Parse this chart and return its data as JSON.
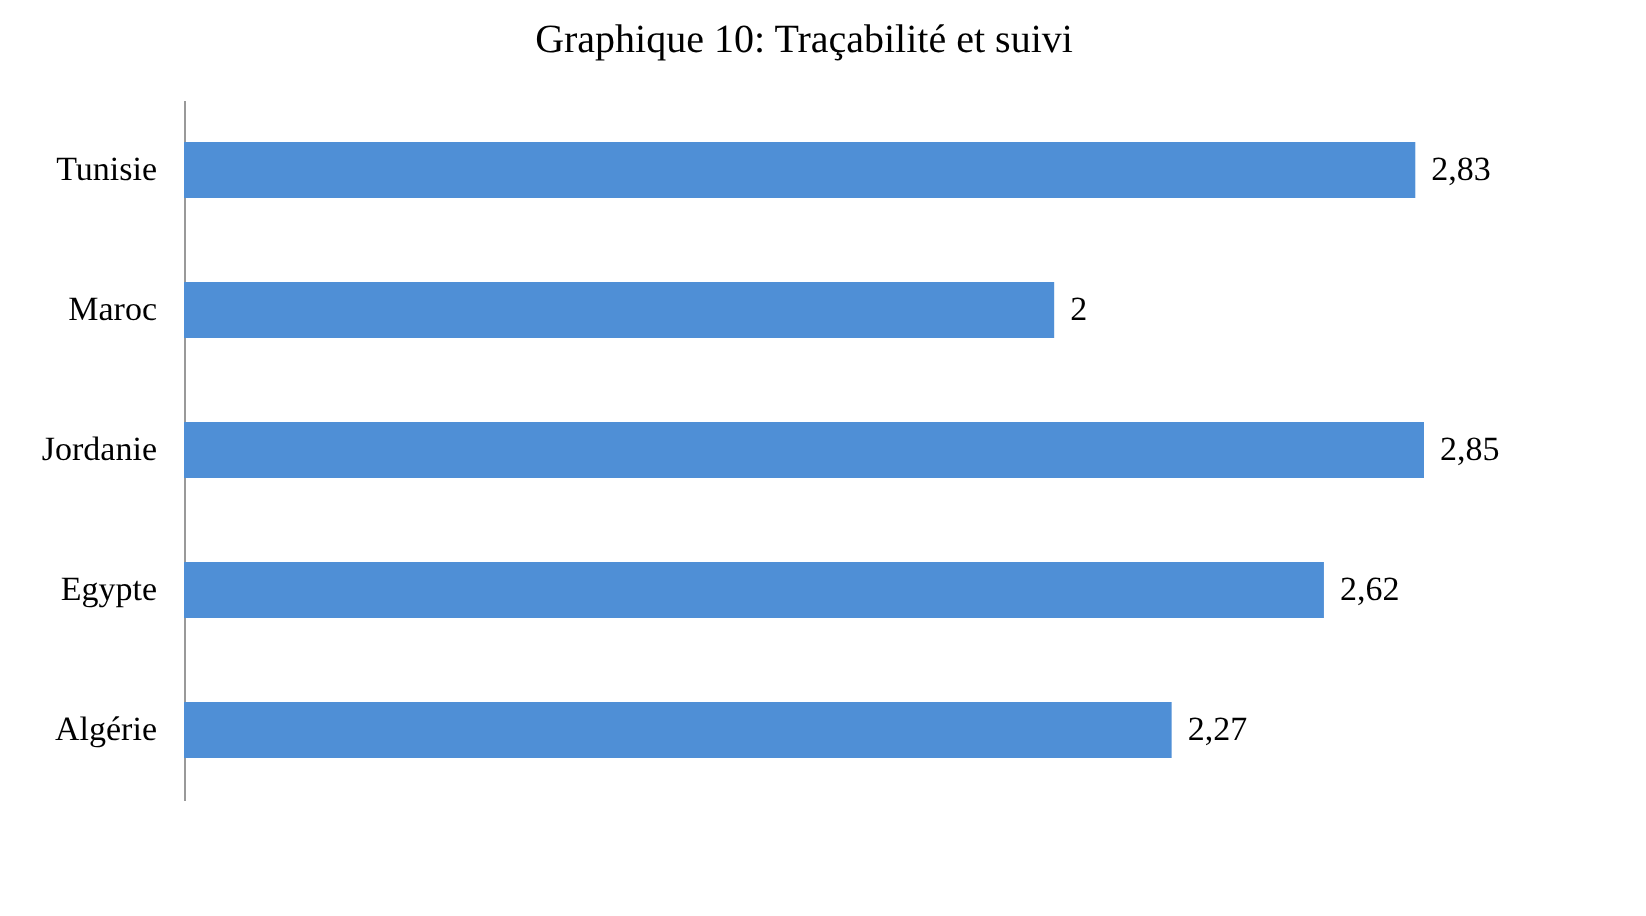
{
  "chart_data": {
    "type": "bar",
    "orientation": "horizontal",
    "title": "Graphique 10: Traçabilité et suivi",
    "categories": [
      "Tunisie",
      "Maroc",
      "Jordanie",
      "Egypte",
      "Algérie"
    ],
    "values": [
      2.83,
      2,
      2.85,
      2.62,
      2.27
    ],
    "value_labels": [
      "2,83",
      "2",
      "2,85",
      "2,62",
      "2,27"
    ],
    "color": "#4f8fd6",
    "tick_labels": "y"
  }
}
